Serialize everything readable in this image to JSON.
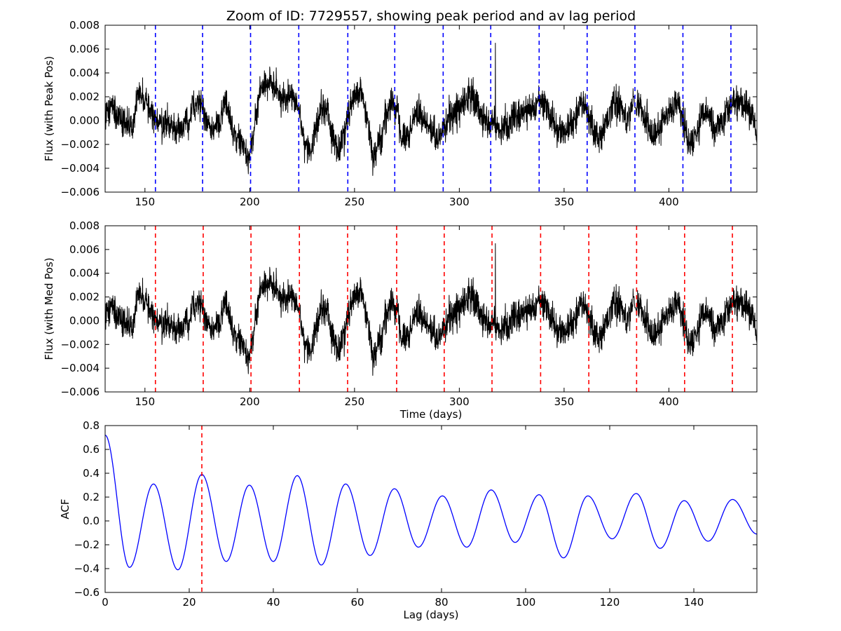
{
  "chart_data": [
    {
      "type": "line",
      "title": "Zoom of ID: 7729557, showing peak period and av lag period",
      "xlabel": "",
      "ylabel": "Flux (with Peak Pos)",
      "xlim": [
        131,
        442
      ],
      "ylim": [
        -0.006,
        0.008
      ],
      "xticks": [
        150,
        200,
        250,
        300,
        350,
        400
      ],
      "yticks": [
        -0.006,
        -0.004,
        -0.002,
        0.0,
        0.002,
        0.004,
        0.006,
        0.008
      ],
      "ytick_labels": [
        "−0.006",
        "−0.004",
        "−0.002",
        "0.000",
        "0.002",
        "0.004",
        "0.006",
        "0.008"
      ],
      "series_color": "#000000",
      "marker_color": "#0000ff",
      "grid": false,
      "period_markers": [
        155.0,
        177.5,
        200.4,
        223.4,
        246.8,
        269.2,
        292.3,
        315.0,
        338.1,
        361.0,
        383.8,
        406.7,
        429.6
      ],
      "flux_anchors": {
        "x": [
          131,
          134,
          138,
          142,
          144,
          147,
          150,
          153,
          157,
          161,
          164,
          167,
          170,
          173,
          176,
          179,
          182,
          186,
          188,
          190,
          193,
          196,
          199,
          201,
          203,
          205,
          208,
          212,
          216,
          220,
          223,
          226,
          229,
          232,
          234,
          237,
          240,
          243,
          245,
          247,
          250,
          253,
          256,
          259,
          262,
          265,
          268,
          270,
          273,
          276,
          279,
          283,
          287,
          290,
          293,
          296,
          299,
          302,
          305,
          308,
          311,
          314,
          317,
          320,
          323,
          326,
          329,
          332,
          335,
          338,
          341,
          344,
          347,
          350,
          353,
          356,
          359,
          362,
          365,
          368,
          371,
          374,
          377,
          380,
          383,
          386,
          389,
          392,
          395,
          398,
          401,
          404,
          407,
          410,
          413,
          416,
          419,
          422,
          425,
          428,
          431,
          434,
          437,
          440,
          442
        ],
        "y": [
          0.0005,
          0.0012,
          0.0002,
          0.0,
          -0.0005,
          0.0022,
          0.0015,
          0.0008,
          -0.0005,
          -0.0002,
          -0.0007,
          -0.0005,
          0.0,
          0.0012,
          0.0015,
          0.0002,
          -0.0008,
          -0.0002,
          0.0015,
          0.0005,
          -0.0012,
          -0.0018,
          -0.0032,
          -0.002,
          0.0005,
          0.0025,
          0.0032,
          0.0028,
          0.0015,
          0.0022,
          0.0012,
          -0.0018,
          -0.0025,
          -0.0005,
          0.0012,
          0.0005,
          -0.0015,
          -0.0028,
          -0.001,
          0.0008,
          0.002,
          0.0025,
          0.0,
          -0.003,
          -0.0015,
          0.0003,
          0.0015,
          0.0008,
          -0.0018,
          -0.0012,
          0.0005,
          0.0002,
          -0.0008,
          -0.0015,
          -0.0005,
          0.0005,
          0.0008,
          0.0012,
          0.0022,
          0.0015,
          0.0003,
          -0.0003,
          -0.0002,
          -0.0008,
          -0.0003,
          0.0003,
          0.0005,
          0.0008,
          0.0012,
          0.0015,
          0.0012,
          0.0002,
          -0.0008,
          -0.0012,
          -0.0003,
          0.0008,
          0.0015,
          0.0005,
          -0.0015,
          -0.0012,
          0.0002,
          0.0015,
          0.0012,
          -0.0002,
          0.0015,
          0.0012,
          0.0,
          -0.0012,
          -0.0008,
          0.0003,
          0.0008,
          0.0015,
          0.0002,
          -0.0018,
          -0.0012,
          0.0005,
          0.0005,
          -0.0008,
          -0.0003,
          0.0008,
          0.0015,
          0.0018,
          0.0012,
          0.0005,
          -0.0015
        ]
      },
      "flux_spike": {
        "x": 317.2,
        "y": 0.0065
      }
    },
    {
      "type": "line",
      "title": "",
      "xlabel": "Time (days)",
      "ylabel": "Flux (with Med Pos)",
      "xlim": [
        131,
        442
      ],
      "ylim": [
        -0.006,
        0.008
      ],
      "xticks": [
        150,
        200,
        250,
        300,
        350,
        400
      ],
      "yticks": [
        -0.006,
        -0.004,
        -0.002,
        0.0,
        0.002,
        0.004,
        0.006,
        0.008
      ],
      "ytick_labels": [
        "−0.006",
        "−0.004",
        "−0.002",
        "0.000",
        "0.002",
        "0.004",
        "0.006",
        "0.008"
      ],
      "series_color": "#000000",
      "marker_color": "#ff0000",
      "grid": false,
      "period_markers": [
        155.0,
        177.8,
        200.6,
        223.7,
        246.7,
        270.1,
        292.8,
        315.6,
        338.8,
        361.8,
        384.6,
        407.5,
        430.3
      ]
    },
    {
      "type": "line",
      "title": "",
      "xlabel": "Lag (days)",
      "ylabel": "ACF",
      "xlim": [
        0,
        155
      ],
      "ylim": [
        -0.6,
        0.8
      ],
      "xticks": [
        0,
        20,
        40,
        60,
        80,
        100,
        120,
        140
      ],
      "yticks": [
        -0.6,
        -0.4,
        -0.2,
        0.0,
        0.2,
        0.4,
        0.6,
        0.8
      ],
      "ytick_labels": [
        "−0.6",
        "−0.4",
        "−0.2",
        "0.0",
        "0.2",
        "0.4",
        "0.6",
        "0.8"
      ],
      "series_color": "#0000ff",
      "marker_color": "#ff0000",
      "grid": false,
      "period_markers": [
        23.0
      ],
      "series": [
        {
          "x": [
            0,
            5.8,
            11.5,
            17.3,
            23.0,
            28.8,
            34.3,
            40.0,
            45.7,
            51.4,
            57.2,
            63.0,
            68.8,
            74.5,
            80.2,
            86.0,
            91.8,
            97.5,
            103.2,
            109.0,
            114.8,
            120.6,
            126.3,
            132.0,
            137.7,
            143.4,
            149.2,
            155.0
          ],
          "y": [
            0.72,
            -0.39,
            0.31,
            -0.41,
            0.39,
            -0.34,
            0.3,
            -0.34,
            0.38,
            -0.37,
            0.31,
            -0.29,
            0.27,
            -0.22,
            0.21,
            -0.22,
            0.26,
            -0.18,
            0.22,
            -0.31,
            0.21,
            -0.15,
            0.23,
            -0.23,
            0.17,
            -0.17,
            0.18,
            -0.11
          ]
        }
      ]
    }
  ]
}
